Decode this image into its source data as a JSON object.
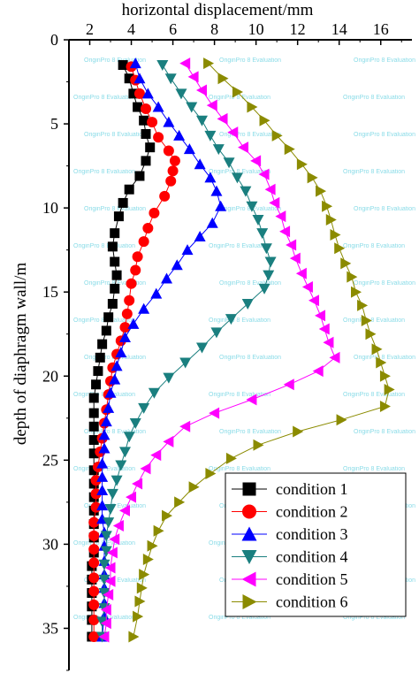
{
  "chart_data": {
    "type": "line",
    "xlabel": "horizontal displacement/mm",
    "ylabel": "depth of diaphragm wall/m",
    "xlim": [
      1,
      17.5
    ],
    "ylim": [
      0,
      37.5
    ],
    "y_inverted": true,
    "x_axis_position": "top",
    "x_ticks": [
      "2",
      "4",
      "6",
      "8",
      "10",
      "12",
      "14",
      "16"
    ],
    "y_ticks": [
      "0",
      "5",
      "10",
      "15",
      "20",
      "25",
      "30",
      "35"
    ],
    "legend_position": "bottom-right",
    "watermark": "OriginPro 8 Evaluation",
    "series": [
      {
        "name": "condition 1",
        "color": "#000000",
        "marker": "square",
        "points": [
          [
            3.6,
            1.5
          ],
          [
            3.9,
            2.3
          ],
          [
            4.1,
            3.2
          ],
          [
            4.3,
            4.0
          ],
          [
            4.6,
            4.8
          ],
          [
            4.7,
            5.6
          ],
          [
            4.9,
            6.4
          ],
          [
            4.7,
            7.2
          ],
          [
            4.4,
            8.1
          ],
          [
            3.9,
            8.9
          ],
          [
            3.6,
            9.7
          ],
          [
            3.4,
            10.5
          ],
          [
            3.2,
            11.5
          ],
          [
            3.1,
            12.3
          ],
          [
            3.2,
            13.2
          ],
          [
            3.3,
            14.0
          ],
          [
            3.2,
            14.8
          ],
          [
            3.1,
            15.7
          ],
          [
            2.9,
            16.5
          ],
          [
            2.8,
            17.3
          ],
          [
            2.6,
            18.1
          ],
          [
            2.5,
            18.9
          ],
          [
            2.4,
            19.7
          ],
          [
            2.3,
            20.5
          ],
          [
            2.2,
            21.3
          ],
          [
            2.2,
            22.2
          ],
          [
            2.2,
            23.0
          ],
          [
            2.2,
            23.8
          ],
          [
            2.2,
            24.6
          ],
          [
            2.2,
            25.6
          ],
          [
            2.2,
            26.4
          ],
          [
            2.2,
            27.2
          ],
          [
            2.2,
            28.0
          ],
          [
            2.2,
            28.8
          ],
          [
            2.2,
            29.6
          ],
          [
            2.2,
            30.5
          ],
          [
            2.1,
            31.3
          ],
          [
            2.1,
            32.1
          ],
          [
            2.1,
            32.9
          ],
          [
            2.1,
            33.7
          ],
          [
            2.1,
            34.5
          ],
          [
            2.1,
            35.5
          ]
        ]
      },
      {
        "name": "condition 2",
        "color": "#ff0000",
        "marker": "circle",
        "points": [
          [
            4.0,
            1.6
          ],
          [
            4.2,
            2.4
          ],
          [
            4.4,
            3.2
          ],
          [
            4.7,
            4.1
          ],
          [
            5.0,
            4.9
          ],
          [
            5.3,
            5.8
          ],
          [
            5.8,
            6.6
          ],
          [
            6.1,
            7.2
          ],
          [
            6.0,
            7.8
          ],
          [
            5.9,
            8.4
          ],
          [
            5.6,
            9.3
          ],
          [
            5.1,
            10.3
          ],
          [
            4.8,
            11.2
          ],
          [
            4.6,
            12.0
          ],
          [
            4.3,
            12.9
          ],
          [
            4.2,
            13.7
          ],
          [
            4.0,
            14.5
          ],
          [
            3.9,
            15.5
          ],
          [
            3.8,
            16.3
          ],
          [
            3.7,
            17.1
          ],
          [
            3.5,
            17.9
          ],
          [
            3.3,
            18.7
          ],
          [
            3.1,
            19.5
          ],
          [
            3.0,
            20.3
          ],
          [
            2.9,
            21.1
          ],
          [
            2.8,
            22.0
          ],
          [
            2.7,
            22.8
          ],
          [
            2.6,
            23.7
          ],
          [
            2.5,
            24.5
          ],
          [
            2.4,
            25.4
          ],
          [
            2.3,
            26.2
          ],
          [
            2.3,
            27.0
          ],
          [
            2.3,
            27.8
          ],
          [
            2.2,
            28.7
          ],
          [
            2.2,
            29.5
          ],
          [
            2.2,
            30.3
          ],
          [
            2.2,
            31.1
          ],
          [
            2.2,
            32.0
          ],
          [
            2.2,
            32.8
          ],
          [
            2.2,
            33.6
          ],
          [
            2.2,
            34.5
          ],
          [
            2.2,
            35.5
          ]
        ]
      },
      {
        "name": "condition 3",
        "color": "#0000ff",
        "marker": "triangle-up",
        "points": [
          [
            4.2,
            1.4
          ],
          [
            4.4,
            2.3
          ],
          [
            4.8,
            3.2
          ],
          [
            5.3,
            4.0
          ],
          [
            5.8,
            4.9
          ],
          [
            6.3,
            5.7
          ],
          [
            6.8,
            6.5
          ],
          [
            7.3,
            7.4
          ],
          [
            7.8,
            8.2
          ],
          [
            8.1,
            9.0
          ],
          [
            8.3,
            9.9
          ],
          [
            7.9,
            10.9
          ],
          [
            7.3,
            11.7
          ],
          [
            6.7,
            12.5
          ],
          [
            6.2,
            13.4
          ],
          [
            5.7,
            14.2
          ],
          [
            5.2,
            15.1
          ],
          [
            4.6,
            16.0
          ],
          [
            4.1,
            16.9
          ],
          [
            3.7,
            17.7
          ],
          [
            3.5,
            18.6
          ],
          [
            3.3,
            19.4
          ],
          [
            3.2,
            20.2
          ],
          [
            3.0,
            21.0
          ],
          [
            2.9,
            21.9
          ],
          [
            2.8,
            22.7
          ],
          [
            2.7,
            23.5
          ],
          [
            2.7,
            24.3
          ],
          [
            2.6,
            25.2
          ],
          [
            2.6,
            26.0
          ],
          [
            2.6,
            26.8
          ],
          [
            2.6,
            27.7
          ],
          [
            2.6,
            28.5
          ],
          [
            2.7,
            29.3
          ],
          [
            2.7,
            30.1
          ],
          [
            2.7,
            31.0
          ],
          [
            2.7,
            31.8
          ],
          [
            2.7,
            32.6
          ],
          [
            2.7,
            33.5
          ],
          [
            2.7,
            34.3
          ],
          [
            2.6,
            35.5
          ]
        ]
      },
      {
        "name": "condition 4",
        "color": "#1a7f7f",
        "marker": "triangle-down",
        "points": [
          [
            5.5,
            1.5
          ],
          [
            5.9,
            2.3
          ],
          [
            6.4,
            3.2
          ],
          [
            6.9,
            4.0
          ],
          [
            7.4,
            4.8
          ],
          [
            7.8,
            5.7
          ],
          [
            8.2,
            6.5
          ],
          [
            8.7,
            7.3
          ],
          [
            9.1,
            8.2
          ],
          [
            9.5,
            9.0
          ],
          [
            9.8,
            9.9
          ],
          [
            10.1,
            10.7
          ],
          [
            10.3,
            11.5
          ],
          [
            10.5,
            12.4
          ],
          [
            10.7,
            13.2
          ],
          [
            10.6,
            14.0
          ],
          [
            10.4,
            14.8
          ],
          [
            9.6,
            15.7
          ],
          [
            8.8,
            16.6
          ],
          [
            8.1,
            17.4
          ],
          [
            7.4,
            18.3
          ],
          [
            6.6,
            19.2
          ],
          [
            5.8,
            20.1
          ],
          [
            5.1,
            21.0
          ],
          [
            4.6,
            21.9
          ],
          [
            4.2,
            22.8
          ],
          [
            3.9,
            23.6
          ],
          [
            3.7,
            24.5
          ],
          [
            3.5,
            25.3
          ],
          [
            3.3,
            26.2
          ],
          [
            3.1,
            27.0
          ],
          [
            3.0,
            27.9
          ],
          [
            2.9,
            28.7
          ],
          [
            2.8,
            29.5
          ],
          [
            2.8,
            30.4
          ],
          [
            2.7,
            31.2
          ],
          [
            2.7,
            32.1
          ],
          [
            2.7,
            32.9
          ],
          [
            2.7,
            33.8
          ],
          [
            2.6,
            34.6
          ],
          [
            2.6,
            35.5
          ]
        ]
      },
      {
        "name": "condition 5",
        "color": "#ff00ff",
        "marker": "triangle-left",
        "points": [
          [
            6.6,
            1.4
          ],
          [
            7.0,
            2.2
          ],
          [
            7.4,
            3.0
          ],
          [
            7.9,
            3.9
          ],
          [
            8.4,
            4.7
          ],
          [
            8.9,
            5.5
          ],
          [
            9.4,
            6.4
          ],
          [
            10.0,
            7.2
          ],
          [
            10.4,
            8.0
          ],
          [
            10.7,
            8.9
          ],
          [
            10.9,
            9.7
          ],
          [
            11.2,
            10.5
          ],
          [
            11.4,
            11.4
          ],
          [
            11.7,
            12.2
          ],
          [
            11.9,
            13.0
          ],
          [
            12.2,
            13.9
          ],
          [
            12.5,
            14.7
          ],
          [
            12.8,
            15.5
          ],
          [
            13.1,
            16.4
          ],
          [
            13.3,
            17.2
          ],
          [
            13.5,
            18.0
          ],
          [
            13.8,
            18.9
          ],
          [
            13.0,
            19.7
          ],
          [
            11.6,
            20.5
          ],
          [
            9.8,
            21.4
          ],
          [
            8.0,
            22.2
          ],
          [
            6.6,
            23.0
          ],
          [
            5.8,
            23.9
          ],
          [
            5.2,
            24.7
          ],
          [
            4.7,
            25.5
          ],
          [
            4.3,
            26.4
          ],
          [
            4.0,
            27.2
          ],
          [
            3.7,
            28.0
          ],
          [
            3.4,
            28.9
          ],
          [
            3.2,
            29.7
          ],
          [
            3.1,
            30.5
          ],
          [
            3.0,
            31.4
          ],
          [
            3.0,
            32.2
          ],
          [
            2.9,
            33.0
          ],
          [
            2.8,
            33.9
          ],
          [
            2.8,
            34.7
          ],
          [
            2.7,
            35.5
          ]
        ]
      },
      {
        "name": "condition 6",
        "color": "#8b8b00",
        "marker": "triangle-right",
        "points": [
          [
            7.7,
            1.4
          ],
          [
            8.4,
            2.3
          ],
          [
            9.1,
            3.1
          ],
          [
            9.8,
            4.0
          ],
          [
            10.4,
            4.8
          ],
          [
            11.0,
            5.7
          ],
          [
            11.6,
            6.5
          ],
          [
            12.2,
            7.4
          ],
          [
            12.7,
            8.2
          ],
          [
            13.1,
            9.0
          ],
          [
            13.4,
            9.9
          ],
          [
            13.6,
            10.7
          ],
          [
            13.8,
            11.6
          ],
          [
            14.0,
            12.4
          ],
          [
            14.3,
            13.3
          ],
          [
            14.6,
            14.1
          ],
          [
            14.8,
            15.0
          ],
          [
            15.1,
            15.8
          ],
          [
            15.3,
            16.7
          ],
          [
            15.5,
            17.5
          ],
          [
            15.8,
            18.4
          ],
          [
            16.0,
            19.2
          ],
          [
            16.2,
            20.0
          ],
          [
            16.4,
            20.8
          ],
          [
            16.2,
            21.8
          ],
          [
            14.1,
            22.6
          ],
          [
            12.0,
            23.3
          ],
          [
            10.1,
            24.1
          ],
          [
            8.8,
            24.9
          ],
          [
            7.8,
            25.8
          ],
          [
            7.0,
            26.6
          ],
          [
            6.3,
            27.5
          ],
          [
            5.7,
            28.3
          ],
          [
            5.3,
            29.2
          ],
          [
            5.0,
            30.1
          ],
          [
            4.8,
            30.9
          ],
          [
            4.6,
            31.8
          ],
          [
            4.5,
            32.6
          ],
          [
            4.4,
            33.4
          ],
          [
            4.3,
            34.3
          ],
          [
            4.1,
            35.5
          ]
        ]
      }
    ]
  }
}
